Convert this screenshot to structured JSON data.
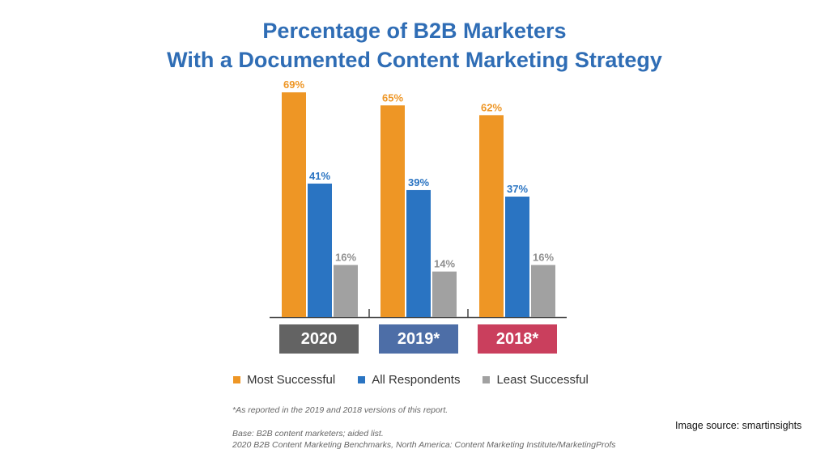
{
  "chart_data": {
    "type": "bar",
    "title": "Percentage of B2B Marketers",
    "subtitle": "With a Documented Content Marketing Strategy",
    "categories": [
      "2020",
      "2019*",
      "2018*"
    ],
    "series": [
      {
        "name": "Most Successful",
        "color": "#ee9625",
        "values": [
          69,
          65,
          62
        ],
        "labels": [
          "69%",
          "65%",
          "62%"
        ]
      },
      {
        "name": "All Respondents",
        "color": "#2a74c2",
        "values": [
          41,
          39,
          37
        ],
        "labels": [
          "41%",
          "39%",
          "37%"
        ]
      },
      {
        "name": "Least Successful",
        "color": "#a1a1a1",
        "values": [
          16,
          14,
          16
        ],
        "labels": [
          "16%",
          "14%",
          "16%"
        ]
      }
    ],
    "category_colors": [
      "#636363",
      "#4d6ea7",
      "#ca3f5d"
    ],
    "ylim": [
      0,
      75
    ],
    "unit": "%",
    "xlabel": "",
    "ylabel": "",
    "legend_position": "bottom"
  },
  "notes": {
    "footnote": "*As reported in the 2019 and 2018 versions of this report.",
    "base": "Base: B2B content marketers; aided list.",
    "source": "2020 B2B Content Marketing Benchmarks, North America: Content Marketing Institute/MarketingProfs"
  },
  "credit": "Image source: smartinsights"
}
